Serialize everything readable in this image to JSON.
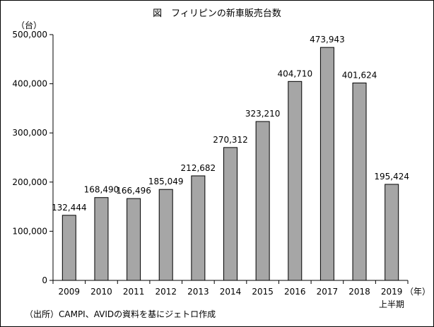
{
  "chart_data": {
    "type": "bar",
    "title": "図　フィリピンの新車販売台数",
    "ylabel": "（台）",
    "xlabel": "（年）",
    "categories": [
      "2009",
      "2010",
      "2011",
      "2012",
      "2013",
      "2014",
      "2015",
      "2016",
      "2017",
      "2018",
      "2019"
    ],
    "category_note": "上半期",
    "values": [
      132444,
      168490,
      166496,
      185049,
      212682,
      270312,
      323210,
      404710,
      473943,
      401624,
      195424
    ],
    "value_labels": [
      "132,444",
      "168,490",
      "166,496",
      "185,049",
      "212,682",
      "270,312",
      "323,210",
      "404,710",
      "473,943",
      "401,624",
      "195,424"
    ],
    "ylim": [
      0,
      500000
    ],
    "yticks": [
      0,
      100000,
      200000,
      300000,
      400000,
      500000
    ],
    "ytick_labels": [
      "0",
      "100,000",
      "200,000",
      "300,000",
      "400,000",
      "500,000"
    ],
    "grid": false,
    "legend": "none",
    "bar_color": "#a6a6a6",
    "source": "（出所）CAMPI、AVIDの資料を基にジェトロ作成"
  }
}
